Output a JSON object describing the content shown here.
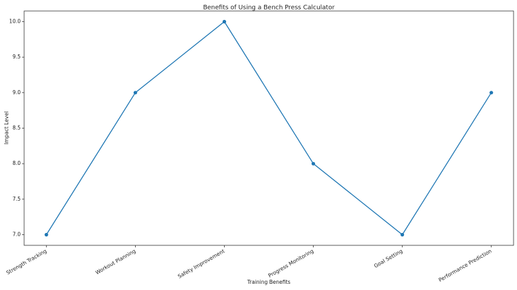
{
  "chart_data": {
    "type": "line",
    "title": "Benefits of Using a Bench Press Calculator",
    "x_label": "Training Benefits",
    "y_label": "Impact Level",
    "categories": [
      "Strength Tracking",
      "Workout Planning",
      "Safety Improvement",
      "Progress Monitoring",
      "Goal Setting",
      "Performance Prediction"
    ],
    "series": [
      {
        "name": "Impact Level",
        "color": "#1f77b4",
        "values": [
          7,
          9,
          10,
          8,
          7,
          9
        ]
      }
    ],
    "ylim": [
      6.85,
      10.15
    ],
    "yticks": [
      {
        "value": 7,
        "label": "7.0"
      },
      {
        "value": 7.5,
        "label": "7.5"
      },
      {
        "value": 8,
        "label": "8.0"
      },
      {
        "value": 8.5,
        "label": "8.5"
      },
      {
        "value": 9,
        "label": "9.0"
      },
      {
        "value": 9.5,
        "label": "9.5"
      },
      {
        "value": 10,
        "label": "10.0"
      }
    ],
    "grid": false
  }
}
